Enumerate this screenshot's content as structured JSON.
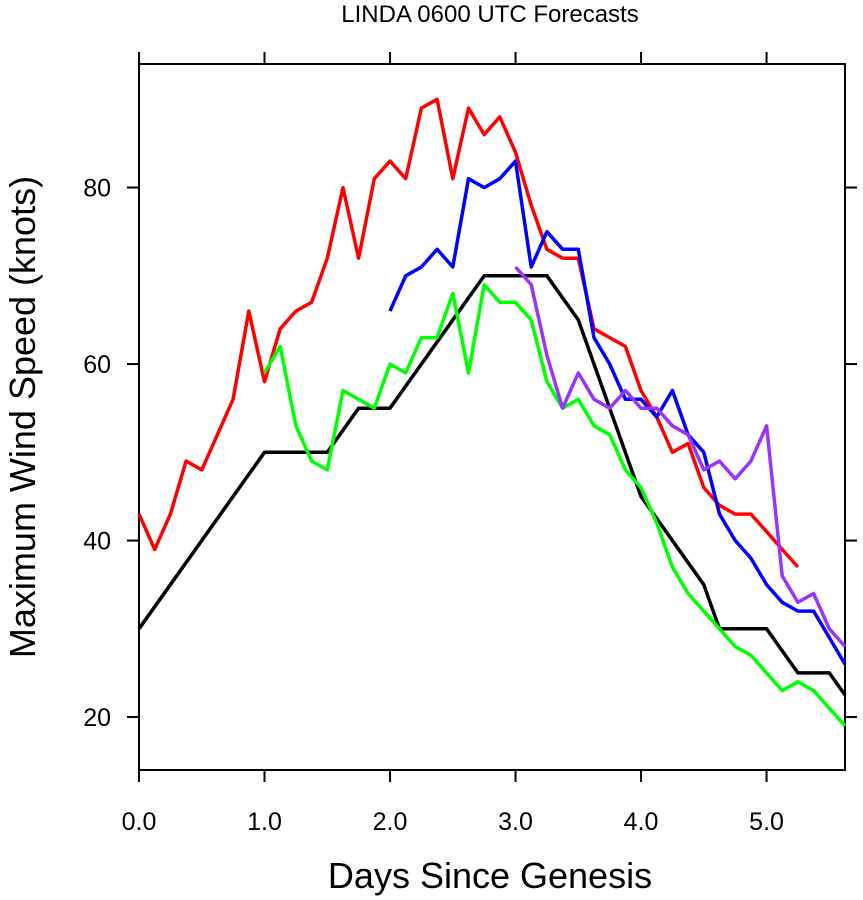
{
  "chart_data": {
    "type": "line",
    "title": "LINDA 0600 UTC Forecasts",
    "xlabel": "Days Since Genesis",
    "ylabel": "Maximum Wind Speed (knots)",
    "xlim": [
      0,
      5.625
    ],
    "ylim": [
      14,
      94
    ],
    "xticks": [
      0,
      1,
      2,
      3,
      4,
      5
    ],
    "xtick_labels": [
      "0.0",
      "1.0",
      "2.0",
      "3.0",
      "4.0",
      "5.0"
    ],
    "yticks": [
      20,
      40,
      60,
      80
    ],
    "ytick_labels": [
      "20",
      "40",
      "60",
      "80"
    ],
    "grid": false,
    "legend": "none",
    "series": [
      {
        "color": "#000000",
        "x": [
          0,
          1.0,
          1.5,
          1.75,
          2.0,
          2.75,
          3.0,
          3.25,
          3.5,
          4.0,
          4.5,
          4.625,
          5.0,
          5.25,
          5.5,
          5.625
        ],
        "y": [
          30,
          50,
          50,
          55,
          55,
          70,
          70,
          70,
          65,
          45,
          35,
          30,
          30,
          25,
          25,
          22.5
        ]
      },
      {
        "color": "#ff0000",
        "x": [
          0,
          0.125,
          0.25,
          0.375,
          0.5,
          0.625,
          0.75,
          0.875,
          1.0,
          1.125,
          1.25,
          1.375,
          1.5,
          1.625,
          1.75,
          1.875,
          2.0,
          2.125,
          2.25,
          2.375,
          2.5,
          2.625,
          2.75,
          2.875,
          3.0,
          3.125,
          3.25,
          3.375,
          3.5,
          3.625,
          3.75,
          3.875,
          4.0,
          4.125,
          4.25,
          4.375,
          4.5,
          4.625,
          4.75,
          4.875,
          5.0,
          5.125,
          5.25
        ],
        "y": [
          43,
          39,
          43,
          49,
          48,
          52,
          56,
          66,
          58,
          64,
          66,
          67,
          72,
          80,
          72,
          81,
          83,
          81,
          89,
          90,
          81,
          89,
          86,
          88,
          84,
          78,
          73,
          72,
          72,
          64,
          63,
          62,
          57,
          54,
          50,
          51,
          46,
          44,
          43,
          43,
          41,
          39,
          37
        ]
      },
      {
        "color": "#00ff00",
        "x": [
          1.0,
          1.125,
          1.25,
          1.375,
          1.5,
          1.625,
          1.75,
          1.875,
          2.0,
          2.125,
          2.25,
          2.375,
          2.5,
          2.625,
          2.75,
          2.875,
          3.0,
          3.125,
          3.25,
          3.375,
          3.5,
          3.625,
          3.75,
          3.875,
          4.0,
          4.125,
          4.25,
          4.375,
          4.5,
          4.625,
          4.75,
          4.875,
          5.0,
          5.125,
          5.25,
          5.375,
          5.5,
          5.625
        ],
        "y": [
          59,
          62,
          53,
          49,
          48,
          57,
          56,
          55,
          60,
          59,
          63,
          63,
          68,
          59,
          69,
          67,
          67,
          65,
          58,
          55,
          56,
          53,
          52,
          48,
          46,
          42,
          37,
          34,
          32,
          30,
          28,
          27,
          25,
          23,
          24,
          23,
          21,
          19
        ]
      },
      {
        "color": "#0000ff",
        "x": [
          2.0,
          2.125,
          2.25,
          2.375,
          2.5,
          2.625,
          2.75,
          2.875,
          3.0,
          3.125,
          3.25,
          3.375,
          3.5,
          3.625,
          3.75,
          3.875,
          4.0,
          4.125,
          4.25,
          4.375,
          4.5,
          4.625,
          4.75,
          4.875,
          5.0,
          5.125,
          5.25,
          5.375,
          5.5,
          5.625
        ],
        "y": [
          66,
          70,
          71,
          73,
          71,
          81,
          80,
          81,
          83,
          71,
          75,
          73,
          73,
          63,
          60,
          56,
          56,
          54,
          57,
          52,
          50,
          43,
          40,
          38,
          35,
          33,
          32,
          32,
          29,
          26
        ]
      },
      {
        "color": "#9933ff",
        "x": [
          3.0,
          3.125,
          3.25,
          3.375,
          3.5,
          3.625,
          3.75,
          3.875,
          4.0,
          4.125,
          4.25,
          4.375,
          4.5,
          4.625,
          4.75,
          4.875,
          5.0,
          5.125,
          5.25,
          5.375,
          5.5,
          5.625
        ],
        "y": [
          71,
          69,
          61,
          55,
          59,
          56,
          55,
          57,
          55,
          55,
          53,
          52,
          48,
          49,
          47,
          49,
          53,
          36,
          33,
          34,
          30,
          28
        ]
      }
    ]
  }
}
